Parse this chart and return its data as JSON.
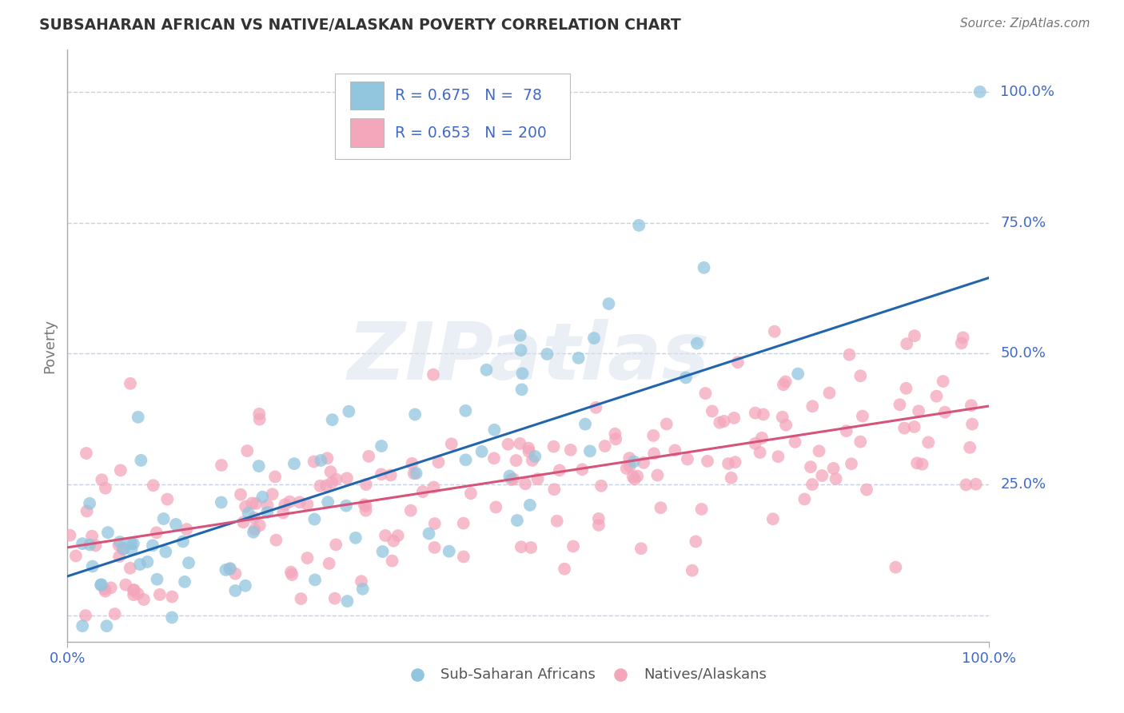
{
  "title": "SUBSAHARAN AFRICAN VS NATIVE/ALASKAN POVERTY CORRELATION CHART",
  "source_text": "Source: ZipAtlas.com",
  "ylabel": "Poverty",
  "watermark": "ZIPatlas",
  "blue_R": 0.675,
  "blue_N": 78,
  "pink_R": 0.653,
  "pink_N": 200,
  "blue_color": "#92c5de",
  "blue_line_color": "#2166ac",
  "pink_color": "#f4a6bb",
  "pink_line_color": "#d6537a",
  "axis_label_color": "#4169c8",
  "title_color": "#333333",
  "background_color": "#ffffff",
  "grid_color": "#c8d0e0",
  "xlim": [
    0,
    1
  ],
  "ylim": [
    -0.05,
    1.08
  ],
  "blue_line_x0": 0.0,
  "blue_line_y0": 0.075,
  "blue_line_x1": 1.0,
  "blue_line_y1": 0.645,
  "pink_line_x0": 0.0,
  "pink_line_y0": 0.13,
  "pink_line_x1": 1.0,
  "pink_line_y1": 0.4,
  "ytick_labels": [
    "25.0%",
    "50.0%",
    "75.0%",
    "100.0%"
  ],
  "ytick_values": [
    0.25,
    0.5,
    0.75,
    1.0
  ],
  "xtick_labels": [
    "0.0%",
    "100.0%"
  ],
  "xtick_values": [
    0,
    1.0
  ],
  "legend_label_blue": "Sub-Saharan Africans",
  "legend_label_pink": "Natives/Alaskans",
  "blue_seed": 101,
  "pink_seed": 55
}
